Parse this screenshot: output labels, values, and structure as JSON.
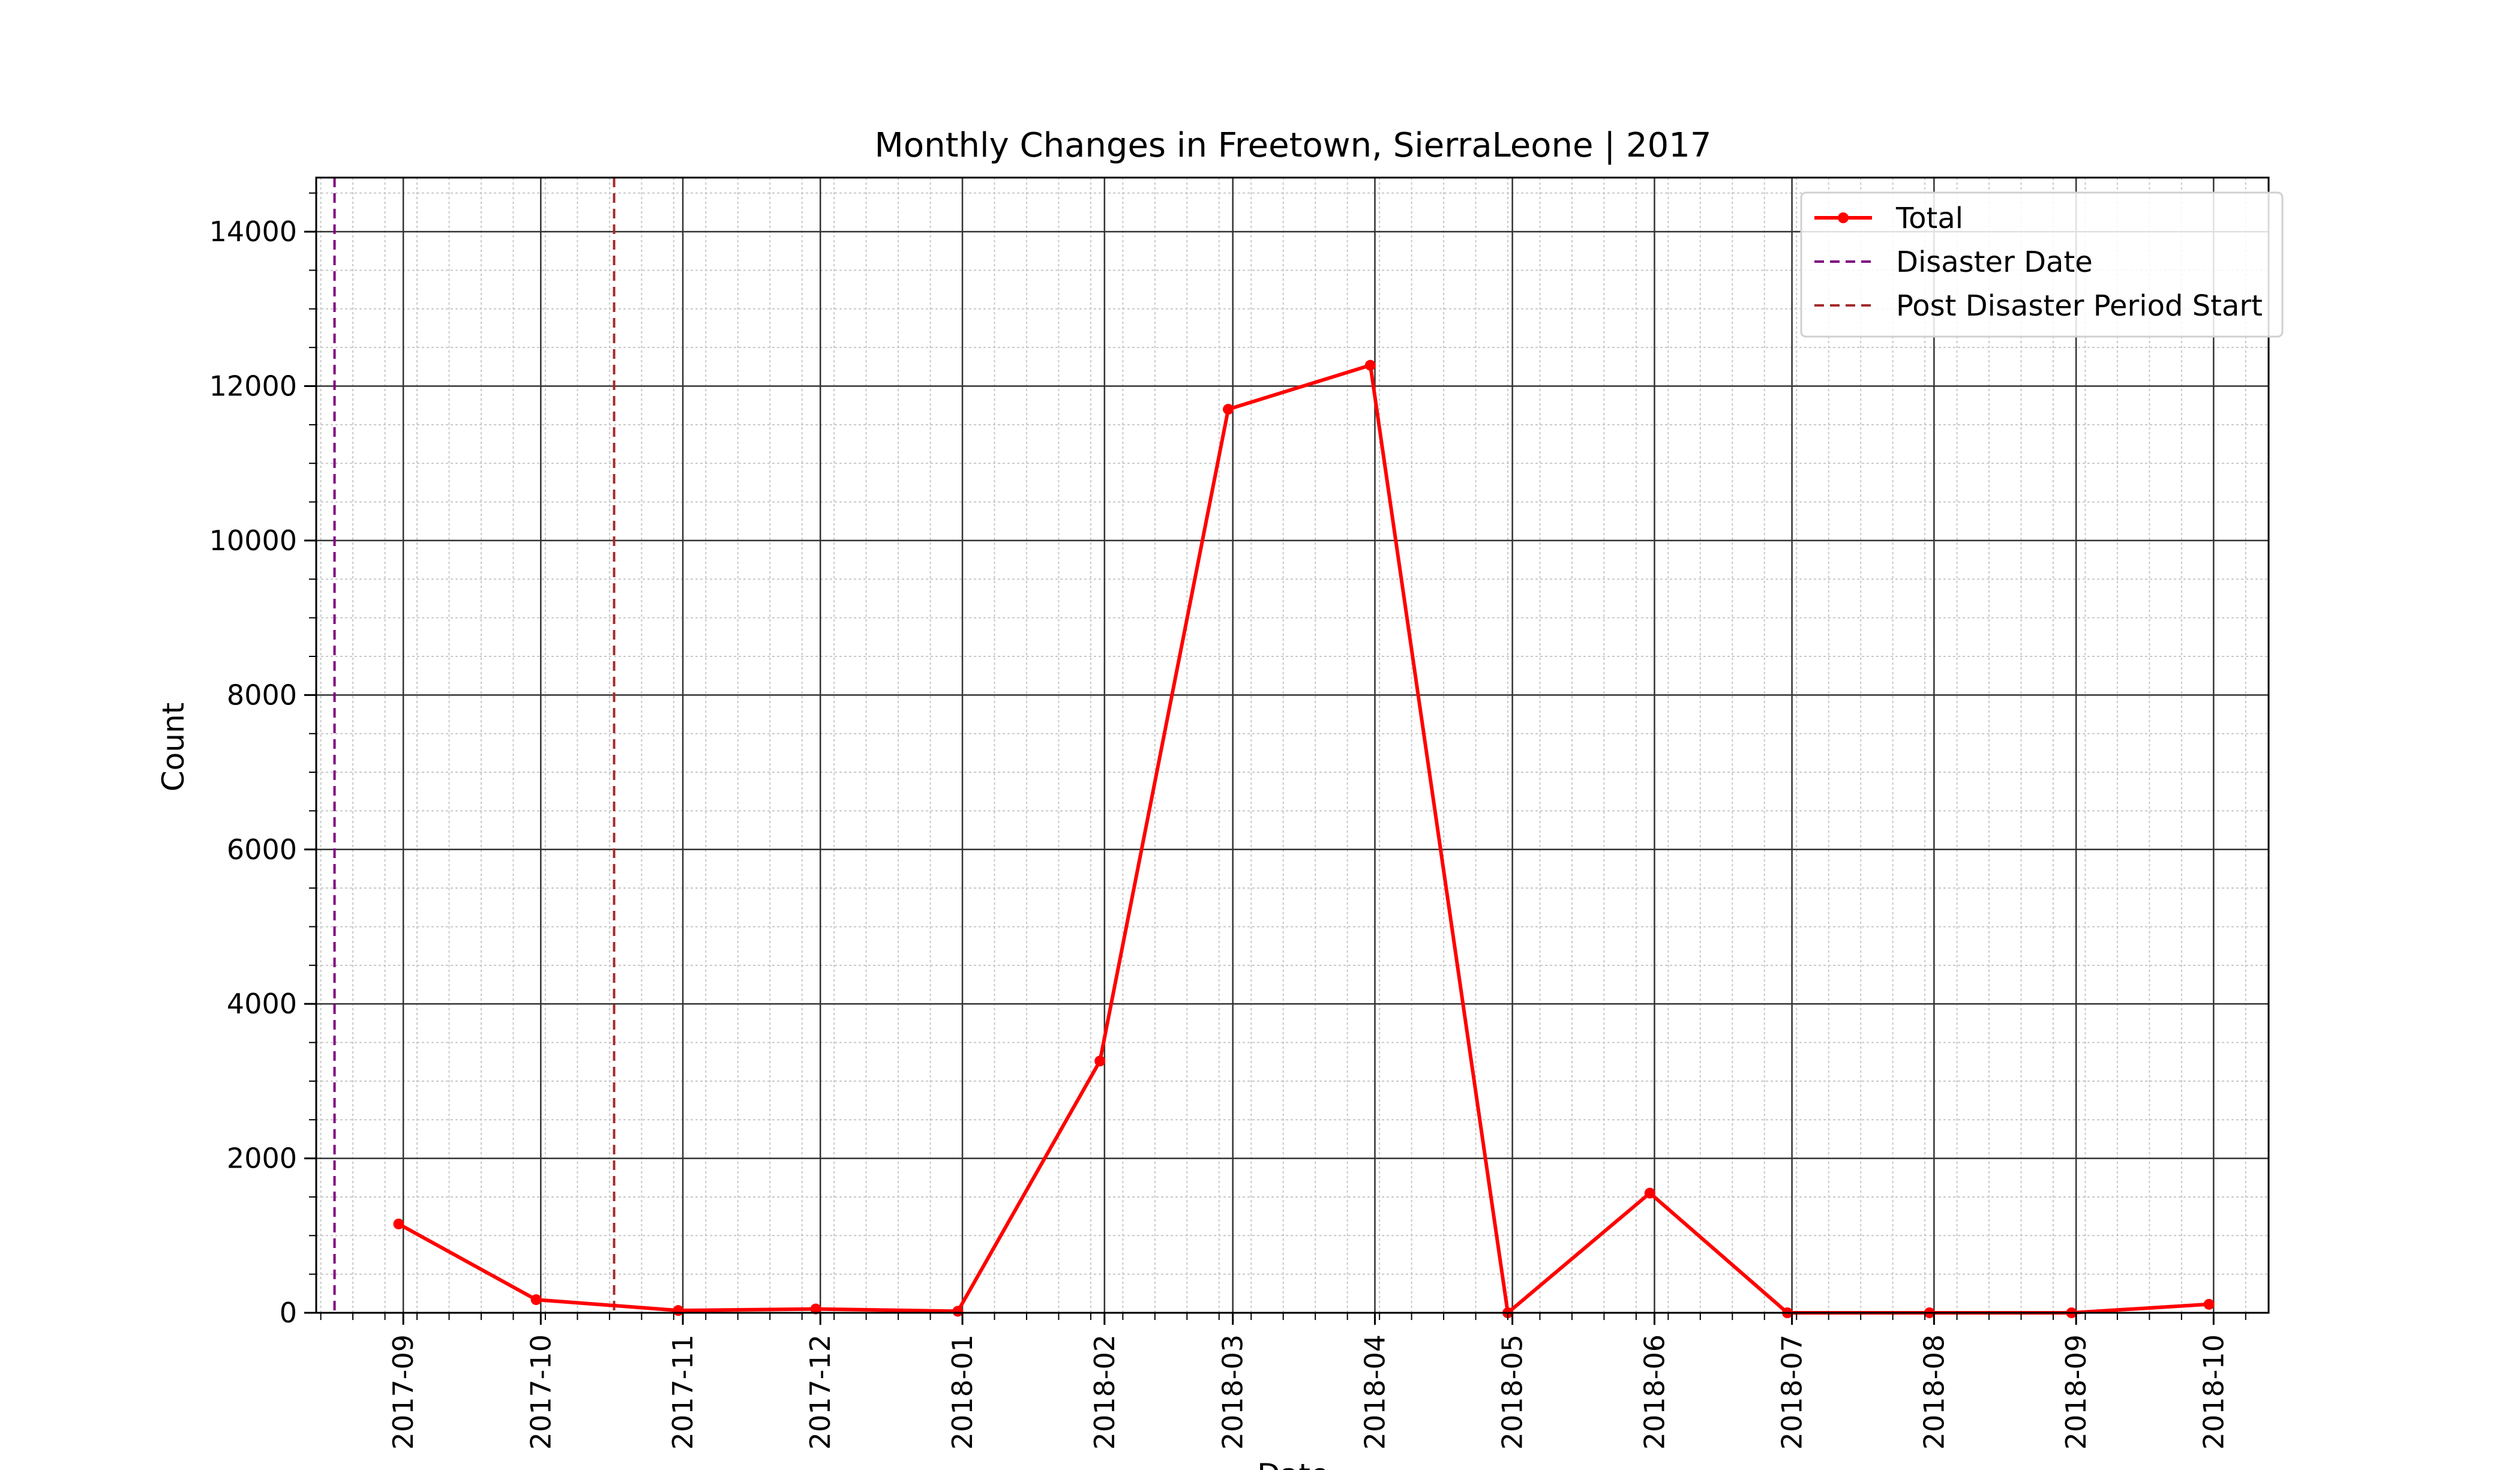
{
  "chart_data": {
    "type": "line",
    "title": "Monthly Changes in Freetown, SierraLeone | 2017",
    "xlabel": "Date",
    "ylabel": "Count",
    "xlim": [
      "2017-08-13",
      "2018-10-13"
    ],
    "ylim": [
      0,
      14700
    ],
    "x_ticks": [
      "2017-09",
      "2017-10",
      "2017-11",
      "2017-12",
      "2018-01",
      "2018-02",
      "2018-03",
      "2018-04",
      "2018-05",
      "2018-06",
      "2018-07",
      "2018-08",
      "2018-09",
      "2018-10"
    ],
    "y_ticks": [
      0,
      2000,
      4000,
      6000,
      8000,
      10000,
      12000,
      14000
    ],
    "grid": true,
    "minor_grid": true,
    "legend_position": "top-right",
    "series": [
      {
        "name": "Total",
        "color": "#ff0000",
        "marker": "circle",
        "x": [
          "2017-08-31",
          "2017-09-30",
          "2017-10-31",
          "2017-11-30",
          "2017-12-31",
          "2018-01-31",
          "2018-02-28",
          "2018-03-31",
          "2018-04-30",
          "2018-05-31",
          "2018-06-30",
          "2018-07-31",
          "2018-08-31",
          "2018-09-30"
        ],
        "values": [
          1150,
          170,
          30,
          50,
          20,
          3260,
          11700,
          12270,
          0,
          1550,
          0,
          0,
          0,
          110
        ]
      }
    ],
    "vlines": [
      {
        "name": "Disaster Date",
        "x": "2017-08-17",
        "color": "#800080",
        "style": "dashed"
      },
      {
        "name": "Post Disaster Period Start",
        "x": "2017-10-17",
        "color": "#a52a2a",
        "style": "dashed"
      }
    ]
  }
}
